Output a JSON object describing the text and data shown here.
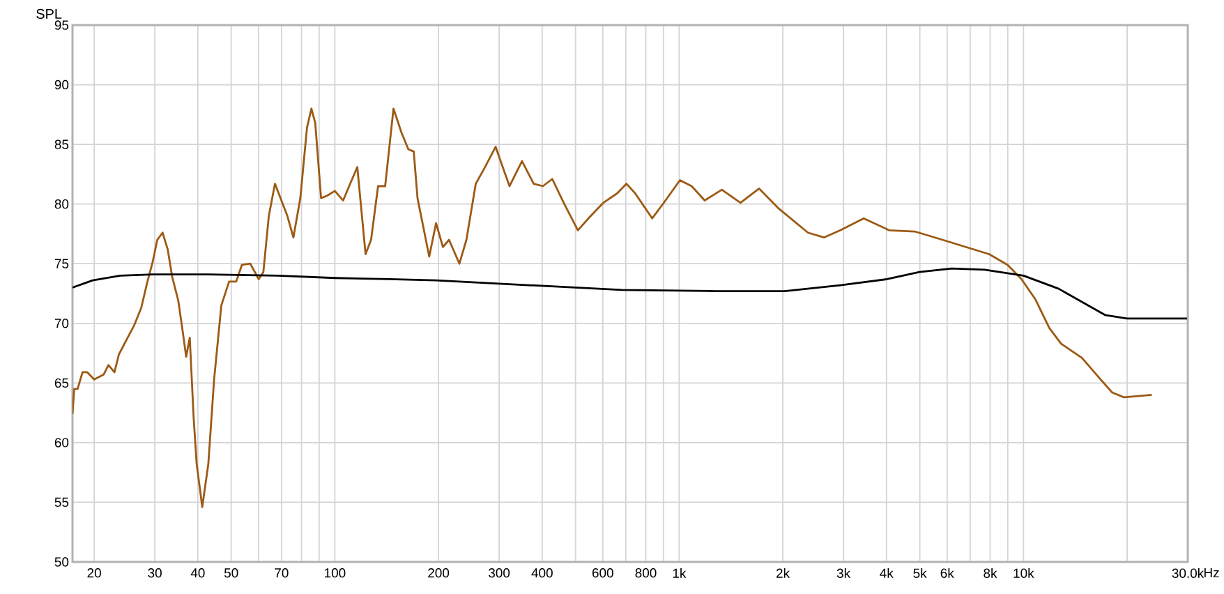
{
  "chart_data": {
    "type": "line",
    "ylabel": "SPL",
    "log": "x",
    "grid": true,
    "marker": "none",
    "line_style": "solid",
    "xlim": [
      17.3,
      30000
    ],
    "ylim": [
      50,
      95
    ],
    "xticks": [
      20,
      30,
      40,
      50,
      {
        "value": 60,
        "label": null
      },
      70,
      {
        "value": 80,
        "label": null
      },
      {
        "value": 90,
        "label": null
      },
      100,
      200,
      300,
      400,
      {
        "value": 500,
        "label": null
      },
      600,
      {
        "value": 700,
        "label": null
      },
      800,
      {
        "value": 900,
        "label": null
      },
      {
        "value": 1000,
        "label": "1k"
      },
      {
        "value": 2000,
        "label": "2k"
      },
      {
        "value": 3000,
        "label": "3k"
      },
      {
        "value": 4000,
        "label": "4k"
      },
      {
        "value": 5000,
        "label": "5k"
      },
      {
        "value": 6000,
        "label": "6k"
      },
      {
        "value": 7000,
        "label": null
      },
      {
        "value": 8000,
        "label": "8k"
      },
      {
        "value": 9000,
        "label": null
      },
      {
        "value": 10000,
        "label": "10k"
      },
      {
        "value": 20000,
        "label": null
      },
      {
        "value": 30000,
        "label": "30.0k"
      }
    ],
    "xlabel": "Hz",
    "yticks": [
      50,
      55,
      60,
      65,
      70,
      75,
      80,
      85,
      90,
      95
    ],
    "series": [
      {
        "color": "#9c5a14",
        "x": [
          17.3,
          17.5,
          17.9,
          18.5,
          19.1,
          20.0,
          21.3,
          22.0,
          22.9,
          23.6,
          24.6,
          26.1,
          27.4,
          28.5,
          29.6,
          30.5,
          31.6,
          32.7,
          33.7,
          35.1,
          36.2,
          37.0,
          37.9,
          38.9,
          39.7,
          41.2,
          42.9,
          44.6,
          46.8,
          49.3,
          51.7,
          53.7,
          56.8,
          60.1,
          62.0,
          64.3,
          67.0,
          69.5,
          72.8,
          75.8,
          79.4,
          83.0,
          85.5,
          87.7,
          91.2,
          94.9,
          100,
          105.7,
          110.8,
          116.2,
          122.8,
          127.4,
          133.5,
          140.0,
          148.0,
          156.1,
          163.4,
          169.5,
          173.8,
          188,
          196.8,
          206,
          214.6,
          230,
          241,
          256.6,
          273,
          293,
          309,
          321.6,
          349.6,
          378,
          402,
          428,
          462,
          508,
          549,
          602,
          661,
          703,
          745,
          835,
          902,
          1005,
          1087,
          1186,
          1330,
          1507,
          1707,
          1933,
          2366,
          2637,
          2938,
          3435,
          4074,
          4833,
          5820,
          6797,
          7946,
          8993,
          9868,
          10835,
          11890,
          12852,
          14787,
          16740,
          18100,
          19580,
          23580
        ],
        "values": [
          62.4,
          64.5,
          64.5,
          65.9,
          65.9,
          65.3,
          65.7,
          66.5,
          65.9,
          67.4,
          68.4,
          69.8,
          71.3,
          73.4,
          75.2,
          77.0,
          77.6,
          76.2,
          73.9,
          71.9,
          69.2,
          67.2,
          68.8,
          62.1,
          58.2,
          54.6,
          58.2,
          65.3,
          71.5,
          73.5,
          73.5,
          74.9,
          75.0,
          73.7,
          74.3,
          79.0,
          81.7,
          80.5,
          79.0,
          77.2,
          80.5,
          86.4,
          88.0,
          86.8,
          80.5,
          80.7,
          81.1,
          80.3,
          81.7,
          83.1,
          75.8,
          77.0,
          81.5,
          81.5,
          88.0,
          86.0,
          84.6,
          84.4,
          80.5,
          75.6,
          78.4,
          76.4,
          77.0,
          75.0,
          77.0,
          81.7,
          83.1,
          84.8,
          82.9,
          81.5,
          83.6,
          81.7,
          81.5,
          82.1,
          80.1,
          77.8,
          78.9,
          80.1,
          80.9,
          81.7,
          80.9,
          78.8,
          80.1,
          82.0,
          81.5,
          80.3,
          81.2,
          80.1,
          81.3,
          79.7,
          77.6,
          77.2,
          77.8,
          78.8,
          77.8,
          77.7,
          77.0,
          76.4,
          75.8,
          74.9,
          73.7,
          72.0,
          69.6,
          68.3,
          67.1,
          65.3,
          64.2,
          63.8,
          64.0
        ]
      },
      {
        "color": "#000000",
        "x": [
          17.3,
          19.8,
          23.8,
          29.6,
          42.9,
          68.4,
          100,
          144,
          196.8,
          366,
          683,
          1270,
          2023,
          2938,
          4010,
          4990,
          6195,
          7710,
          10000,
          12650,
          17250,
          20000,
          29850
        ],
        "values": [
          73.0,
          73.6,
          74.0,
          74.1,
          74.1,
          74.0,
          73.8,
          73.7,
          73.6,
          73.2,
          72.8,
          72.7,
          72.7,
          73.2,
          73.7,
          74.3,
          74.6,
          74.5,
          74.0,
          72.9,
          70.7,
          70.4,
          70.4
        ]
      }
    ]
  }
}
